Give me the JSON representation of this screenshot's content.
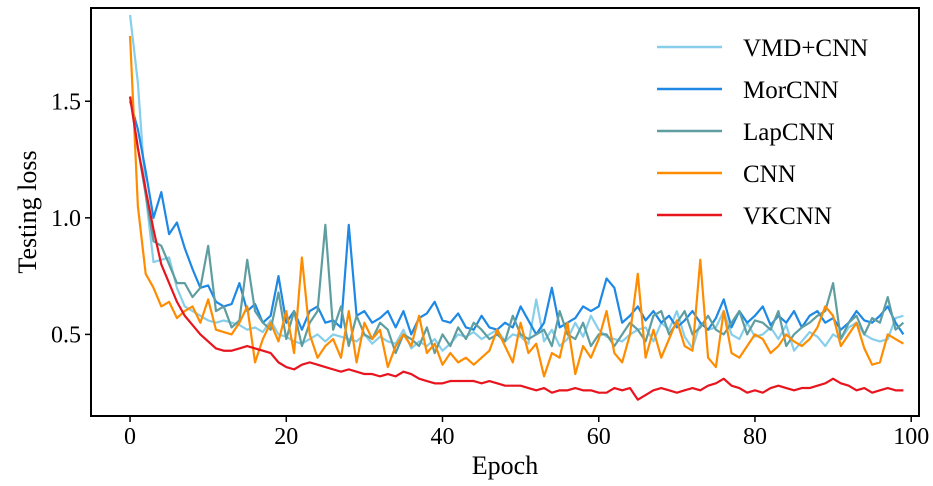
{
  "chart_data": {
    "type": "line",
    "title": "",
    "xlabel": "Epoch",
    "ylabel": "Testing loss",
    "xlim": [
      -5,
      101
    ],
    "ylim": [
      0.15,
      1.9
    ],
    "xticks": [
      0,
      20,
      40,
      60,
      80,
      100
    ],
    "yticks": [
      0.5,
      1.0,
      1.5
    ],
    "xtick_labels": [
      "0",
      "20",
      "40",
      "60",
      "80",
      "100"
    ],
    "ytick_labels": [
      "0.5",
      "1.0",
      "1.5"
    ],
    "grid": false,
    "legend": "top-right",
    "series": [
      {
        "name": "VMD+CNN",
        "color": "#87CEEB",
        "values": [
          1.87,
          1.58,
          1.1,
          0.81,
          0.82,
          0.83,
          0.7,
          0.62,
          0.6,
          0.58,
          0.56,
          0.55,
          0.56,
          0.55,
          0.54,
          0.52,
          0.53,
          0.51,
          0.56,
          0.5,
          0.49,
          0.47,
          0.46,
          0.48,
          0.5,
          0.47,
          0.5,
          0.49,
          0.48,
          0.47,
          0.5,
          0.46,
          0.49,
          0.47,
          0.46,
          0.52,
          0.44,
          0.47,
          0.45,
          0.48,
          0.43,
          0.46,
          0.5,
          0.49,
          0.51,
          0.48,
          0.5,
          0.52,
          0.47,
          0.5,
          0.49,
          0.46,
          0.65,
          0.47,
          0.52,
          0.45,
          0.48,
          0.55,
          0.49,
          0.58,
          0.52,
          0.49,
          0.48,
          0.47,
          0.5,
          0.52,
          0.53,
          0.47,
          0.55,
          0.52,
          0.6,
          0.49,
          0.44,
          0.55,
          0.52,
          0.53,
          0.6,
          0.5,
          0.48,
          0.55,
          0.49,
          0.5,
          0.53,
          0.48,
          0.54,
          0.43,
          0.47,
          0.51,
          0.49,
          0.45,
          0.5,
          0.48,
          0.53,
          0.55,
          0.5,
          0.48,
          0.47,
          0.48,
          0.57,
          0.58
        ]
      },
      {
        "name": "MorCNN",
        "color": "#1E88E5",
        "values": [
          1.5,
          1.38,
          1.2,
          1.0,
          1.11,
          0.93,
          0.98,
          0.87,
          0.78,
          0.7,
          0.71,
          0.64,
          0.62,
          0.63,
          0.72,
          0.6,
          0.63,
          0.55,
          0.58,
          0.75,
          0.55,
          0.6,
          0.52,
          0.6,
          0.62,
          0.55,
          0.56,
          0.53,
          0.97,
          0.58,
          0.6,
          0.55,
          0.57,
          0.6,
          0.53,
          0.6,
          0.5,
          0.57,
          0.59,
          0.64,
          0.56,
          0.55,
          0.59,
          0.53,
          0.52,
          0.58,
          0.53,
          0.52,
          0.55,
          0.53,
          0.62,
          0.56,
          0.5,
          0.55,
          0.7,
          0.53,
          0.55,
          0.57,
          0.62,
          0.6,
          0.62,
          0.74,
          0.7,
          0.55,
          0.58,
          0.62,
          0.56,
          0.6,
          0.55,
          0.58,
          0.53,
          0.56,
          0.6,
          0.55,
          0.52,
          0.57,
          0.65,
          0.53,
          0.6,
          0.55,
          0.58,
          0.62,
          0.54,
          0.58,
          0.55,
          0.6,
          0.53,
          0.58,
          0.6,
          0.55,
          0.57,
          0.52,
          0.55,
          0.6,
          0.56,
          0.55,
          0.58,
          0.62,
          0.55,
          0.5
        ]
      },
      {
        "name": "LapCNN",
        "color": "#5F9EA0",
        "values": [
          1.52,
          1.3,
          1.1,
          0.9,
          0.88,
          0.8,
          0.72,
          0.72,
          0.66,
          0.7,
          0.88,
          0.6,
          0.62,
          0.53,
          0.56,
          0.82,
          0.6,
          0.55,
          0.52,
          0.68,
          0.48,
          0.6,
          0.45,
          0.55,
          0.6,
          0.97,
          0.52,
          0.62,
          0.45,
          0.58,
          0.5,
          0.48,
          0.55,
          0.52,
          0.42,
          0.5,
          0.48,
          0.45,
          0.53,
          0.42,
          0.5,
          0.45,
          0.53,
          0.48,
          0.55,
          0.52,
          0.48,
          0.5,
          0.47,
          0.58,
          0.5,
          0.48,
          0.5,
          0.52,
          0.45,
          0.6,
          0.5,
          0.48,
          0.55,
          0.45,
          0.5,
          0.5,
          0.45,
          0.5,
          0.55,
          0.52,
          0.47,
          0.58,
          0.6,
          0.5,
          0.55,
          0.6,
          0.5,
          0.53,
          0.58,
          0.52,
          0.5,
          0.55,
          0.6,
          0.5,
          0.56,
          0.55,
          0.52,
          0.6,
          0.45,
          0.5,
          0.53,
          0.55,
          0.58,
          0.6,
          0.72,
          0.48,
          0.55,
          0.58,
          0.5,
          0.57,
          0.55,
          0.66,
          0.52,
          0.55
        ]
      },
      {
        "name": "CNN",
        "color": "#FF8C00",
        "values": [
          1.78,
          1.05,
          0.76,
          0.7,
          0.62,
          0.64,
          0.57,
          0.6,
          0.62,
          0.55,
          0.65,
          0.52,
          0.51,
          0.5,
          0.55,
          0.62,
          0.38,
          0.48,
          0.55,
          0.47,
          0.6,
          0.42,
          0.83,
          0.5,
          0.4,
          0.45,
          0.48,
          0.4,
          0.6,
          0.38,
          0.55,
          0.48,
          0.52,
          0.36,
          0.45,
          0.5,
          0.45,
          0.58,
          0.42,
          0.46,
          0.37,
          0.42,
          0.38,
          0.4,
          0.37,
          0.4,
          0.43,
          0.52,
          0.45,
          0.38,
          0.55,
          0.42,
          0.46,
          0.32,
          0.42,
          0.4,
          0.55,
          0.33,
          0.45,
          0.4,
          0.48,
          0.6,
          0.42,
          0.38,
          0.5,
          0.76,
          0.4,
          0.52,
          0.4,
          0.48,
          0.56,
          0.45,
          0.43,
          0.82,
          0.4,
          0.36,
          0.6,
          0.42,
          0.4,
          0.45,
          0.5,
          0.48,
          0.42,
          0.45,
          0.5,
          0.47,
          0.45,
          0.48,
          0.53,
          0.62,
          0.58,
          0.45,
          0.5,
          0.55,
          0.44,
          0.37,
          0.38,
          0.5,
          0.48,
          0.46
        ]
      },
      {
        "name": "VKCNN",
        "color": "#E8141E",
        "values": [
          1.52,
          1.3,
          1.12,
          0.95,
          0.8,
          0.72,
          0.64,
          0.58,
          0.54,
          0.5,
          0.47,
          0.44,
          0.43,
          0.43,
          0.44,
          0.45,
          0.44,
          0.43,
          0.42,
          0.38,
          0.36,
          0.35,
          0.37,
          0.38,
          0.37,
          0.36,
          0.35,
          0.34,
          0.35,
          0.34,
          0.33,
          0.33,
          0.32,
          0.33,
          0.32,
          0.34,
          0.33,
          0.31,
          0.3,
          0.29,
          0.29,
          0.3,
          0.3,
          0.3,
          0.3,
          0.29,
          0.3,
          0.29,
          0.28,
          0.28,
          0.28,
          0.27,
          0.26,
          0.27,
          0.25,
          0.26,
          0.26,
          0.27,
          0.26,
          0.26,
          0.25,
          0.25,
          0.27,
          0.26,
          0.27,
          0.22,
          0.24,
          0.26,
          0.27,
          0.26,
          0.25,
          0.26,
          0.27,
          0.26,
          0.28,
          0.29,
          0.31,
          0.28,
          0.27,
          0.25,
          0.26,
          0.25,
          0.27,
          0.28,
          0.27,
          0.26,
          0.27,
          0.27,
          0.28,
          0.29,
          0.31,
          0.29,
          0.28,
          0.26,
          0.27,
          0.25,
          0.26,
          0.27,
          0.26,
          0.26
        ]
      }
    ]
  }
}
